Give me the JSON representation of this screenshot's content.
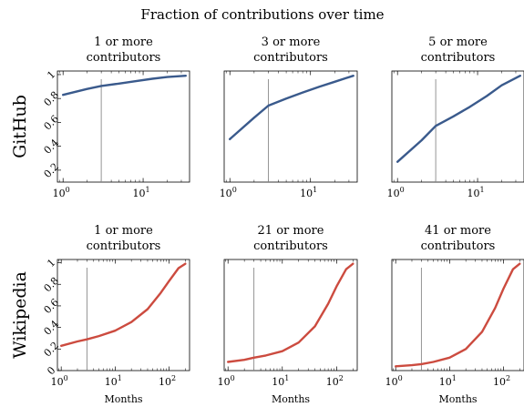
{
  "figure": {
    "title": "Fraction of contributions over time"
  },
  "chart_data": [
    {
      "type": "line",
      "row_label": "GitHub",
      "title": "1 or more\ncontributors",
      "xlabel": "",
      "x_scale": "log",
      "xlim": [
        0.85,
        38
      ],
      "ylim": [
        0.1,
        1.03
      ],
      "x_ticks": [
        "10^0",
        "10^1"
      ],
      "y_ticks": [
        "0.2",
        "0.4",
        "0.6",
        "0.8",
        "1"
      ],
      "vline_x": 3,
      "color": "#3a5a8c",
      "series": [
        {
          "x": [
            1,
            2,
            3,
            5,
            8,
            13,
            20,
            34
          ],
          "y": [
            0.83,
            0.88,
            0.905,
            0.925,
            0.945,
            0.965,
            0.98,
            0.99
          ]
        }
      ]
    },
    {
      "type": "line",
      "row_label": "",
      "title": "3 or more\ncontributors",
      "xlabel": "",
      "x_scale": "log",
      "xlim": [
        0.85,
        38
      ],
      "ylim": [
        0.1,
        1.03
      ],
      "x_ticks": [
        "10^0",
        "10^1"
      ],
      "y_ticks": [],
      "vline_x": 3,
      "color": "#3a5a8c",
      "series": [
        {
          "x": [
            1,
            2,
            3,
            5,
            8,
            13,
            20,
            34
          ],
          "y": [
            0.46,
            0.64,
            0.74,
            0.8,
            0.85,
            0.9,
            0.94,
            0.99
          ]
        }
      ]
    },
    {
      "type": "line",
      "row_label": "",
      "title": "5 or more\ncontributors",
      "xlabel": "",
      "x_scale": "log",
      "xlim": [
        0.85,
        38
      ],
      "ylim": [
        0.1,
        1.03
      ],
      "x_ticks": [
        "10^0",
        "10^1"
      ],
      "y_ticks": [],
      "vline_x": 3,
      "color": "#3a5a8c",
      "series": [
        {
          "x": [
            1,
            2,
            3,
            5,
            8,
            13,
            20,
            34
          ],
          "y": [
            0.27,
            0.45,
            0.57,
            0.65,
            0.73,
            0.82,
            0.91,
            0.99
          ]
        }
      ]
    },
    {
      "type": "line",
      "row_label": "Wikipedia",
      "title": "1 or more\ncontributors",
      "xlabel": "Months",
      "x_scale": "log",
      "xlim": [
        0.85,
        240
      ],
      "ylim": [
        0,
        1.03
      ],
      "x_ticks": [
        "10^0",
        "10^1",
        "10^2"
      ],
      "y_ticks": [
        "0",
        "0.2",
        "0.4",
        "0.6",
        "0.8",
        "1"
      ],
      "vline_x": 3,
      "color": "#cc4b3f",
      "series": [
        {
          "x": [
            1,
            2,
            3,
            5,
            10,
            20,
            40,
            70,
            100,
            150,
            200
          ],
          "y": [
            0.23,
            0.27,
            0.29,
            0.32,
            0.37,
            0.45,
            0.57,
            0.72,
            0.83,
            0.95,
            0.99
          ]
        }
      ]
    },
    {
      "type": "line",
      "row_label": "",
      "title": "21 or more\ncontributors",
      "xlabel": "Months",
      "x_scale": "log",
      "xlim": [
        0.85,
        240
      ],
      "ylim": [
        0,
        1.03
      ],
      "x_ticks": [
        "10^0",
        "10^1",
        "10^2"
      ],
      "y_ticks": [],
      "vline_x": 3,
      "color": "#cc4b3f",
      "series": [
        {
          "x": [
            1,
            2,
            3,
            5,
            10,
            20,
            40,
            70,
            100,
            150,
            200
          ],
          "y": [
            0.08,
            0.1,
            0.12,
            0.14,
            0.18,
            0.26,
            0.41,
            0.62,
            0.78,
            0.94,
            0.99
          ]
        }
      ]
    },
    {
      "type": "line",
      "row_label": "",
      "title": "41 or more\ncontributors",
      "xlabel": "Months",
      "x_scale": "log",
      "xlim": [
        0.85,
        240
      ],
      "ylim": [
        0,
        1.03
      ],
      "x_ticks": [
        "10^0",
        "10^1",
        "10^2"
      ],
      "y_ticks": [],
      "vline_x": 3,
      "color": "#cc4b3f",
      "series": [
        {
          "x": [
            1,
            2,
            3,
            5,
            10,
            20,
            40,
            70,
            100,
            150,
            200
          ],
          "y": [
            0.04,
            0.05,
            0.06,
            0.08,
            0.12,
            0.2,
            0.36,
            0.58,
            0.76,
            0.94,
            0.99
          ]
        }
      ]
    }
  ]
}
